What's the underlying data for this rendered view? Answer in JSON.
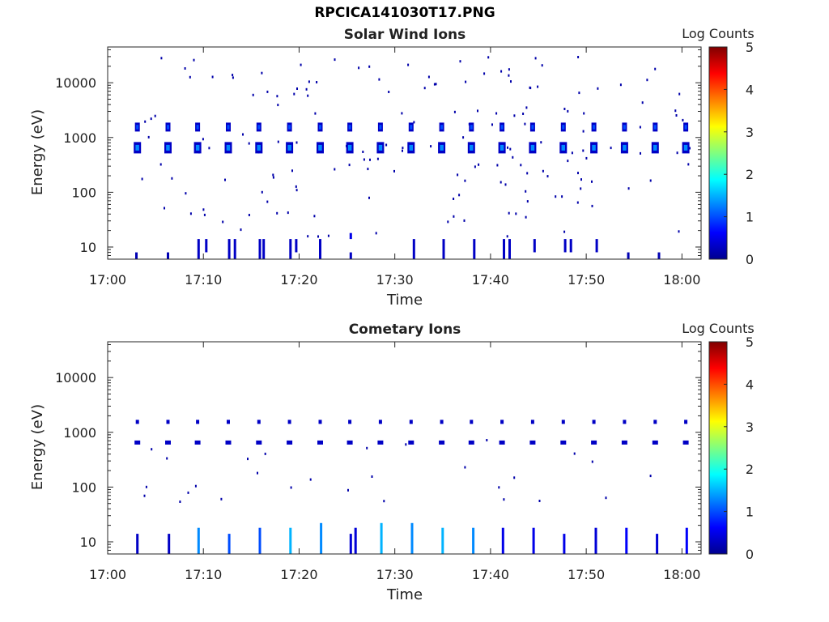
{
  "figure": {
    "title": "RPCICA141030T17.PNG"
  },
  "colormap": {
    "name": "jet",
    "label": "Log Counts",
    "range": [
      0,
      5
    ],
    "ticks": [
      "0",
      "1",
      "2",
      "3",
      "4",
      "5"
    ]
  },
  "chart_data": [
    {
      "type": "heatmap",
      "title": "Solar Wind Ions",
      "xlabel": "Time",
      "ylabel": "Energy (eV)",
      "x_scale": "time",
      "y_scale": "log",
      "xlim": [
        "17:00",
        "18:02"
      ],
      "ylim": [
        6,
        45000
      ],
      "x_ticks": [
        "17:00",
        "17:10",
        "17:20",
        "17:30",
        "17:40",
        "17:50",
        "18:00"
      ],
      "y_ticks": [
        "10",
        "100",
        "1000",
        "10000"
      ],
      "colorbar_label": "Log Counts",
      "scan_times_min": [
        3.1,
        6.3,
        9.4,
        12.6,
        15.8,
        19.0,
        22.2,
        25.3,
        28.5,
        31.7,
        34.9,
        38.0,
        41.2,
        44.4,
        47.6,
        50.8,
        54.0,
        57.2,
        60.4
      ],
      "clusters": [
        {
          "energy_eV": 1550,
          "log_counts": 1.0
        },
        {
          "energy_eV": 650,
          "log_counts": 1.3
        }
      ],
      "low_energy_streaks": [
        {
          "t_min": 3.0,
          "energy_range_eV": [
            6,
            8
          ],
          "log_counts": 0.2
        },
        {
          "t_min": 6.3,
          "energy_range_eV": [
            6,
            8
          ],
          "log_counts": 0.2
        },
        {
          "t_min": 9.5,
          "energy_range_eV": [
            6,
            14
          ],
          "log_counts": 0.3
        },
        {
          "t_min": 10.3,
          "energy_range_eV": [
            8,
            14
          ],
          "log_counts": 0.3
        },
        {
          "t_min": 12.7,
          "energy_range_eV": [
            6,
            14
          ],
          "log_counts": 0.3
        },
        {
          "t_min": 13.3,
          "energy_range_eV": [
            6,
            14
          ],
          "log_counts": 0.3
        },
        {
          "t_min": 15.9,
          "energy_range_eV": [
            6,
            14
          ],
          "log_counts": 0.3
        },
        {
          "t_min": 16.3,
          "energy_range_eV": [
            6,
            14
          ],
          "log_counts": 0.3
        },
        {
          "t_min": 19.1,
          "energy_range_eV": [
            6,
            14
          ],
          "log_counts": 0.3
        },
        {
          "t_min": 19.7,
          "energy_range_eV": [
            8,
            14
          ],
          "log_counts": 0.3
        },
        {
          "t_min": 22.2,
          "energy_range_eV": [
            6,
            14
          ],
          "log_counts": 0.3
        },
        {
          "t_min": 25.4,
          "energy_range_eV": [
            6,
            8
          ],
          "log_counts": 0.3
        },
        {
          "t_min": 25.4,
          "energy_range_eV": [
            14,
            18
          ],
          "log_counts": 0.5
        },
        {
          "t_min": 32.0,
          "energy_range_eV": [
            6,
            14
          ],
          "log_counts": 0.3
        },
        {
          "t_min": 35.1,
          "energy_range_eV": [
            6,
            14
          ],
          "log_counts": 0.3
        },
        {
          "t_min": 38.3,
          "energy_range_eV": [
            6,
            14
          ],
          "log_counts": 0.3
        },
        {
          "t_min": 41.4,
          "energy_range_eV": [
            6,
            14
          ],
          "log_counts": 0.3
        },
        {
          "t_min": 42.0,
          "energy_range_eV": [
            6,
            14
          ],
          "log_counts": 0.3
        },
        {
          "t_min": 44.6,
          "energy_range_eV": [
            8,
            14
          ],
          "log_counts": 0.3
        },
        {
          "t_min": 47.8,
          "energy_range_eV": [
            8,
            14
          ],
          "log_counts": 0.3
        },
        {
          "t_min": 48.4,
          "energy_range_eV": [
            8,
            14
          ],
          "log_counts": 0.3
        },
        {
          "t_min": 51.1,
          "energy_range_eV": [
            8,
            14
          ],
          "log_counts": 0.3
        },
        {
          "t_min": 54.4,
          "energy_range_eV": [
            6,
            8
          ],
          "log_counts": 0.2
        },
        {
          "t_min": 57.6,
          "energy_range_eV": [
            6,
            8
          ],
          "log_counts": 0.2
        }
      ]
    },
    {
      "type": "heatmap",
      "title": "Cometary Ions",
      "xlabel": "Time",
      "ylabel": "Energy (eV)",
      "x_scale": "time",
      "y_scale": "log",
      "xlim": [
        "17:00",
        "18:02"
      ],
      "ylim": [
        6,
        45000
      ],
      "x_ticks": [
        "17:00",
        "17:10",
        "17:20",
        "17:30",
        "17:40",
        "17:50",
        "18:00"
      ],
      "y_ticks": [
        "10",
        "100",
        "1000",
        "10000"
      ],
      "colorbar_label": "Log Counts",
      "scan_times_min": [
        3.1,
        6.3,
        9.4,
        12.6,
        15.8,
        19.0,
        22.2,
        25.3,
        28.5,
        31.7,
        34.9,
        38.0,
        41.2,
        44.4,
        47.6,
        50.8,
        54.0,
        57.2,
        60.4
      ],
      "clusters": [
        {
          "energy_eV": 1550,
          "log_counts": 0.2
        },
        {
          "energy_eV": 650,
          "log_counts": 0.2
        }
      ],
      "low_energy_streaks": [
        {
          "t_min": 3.1,
          "energy_range_eV": [
            6,
            14
          ],
          "log_counts": 0.3
        },
        {
          "t_min": 6.4,
          "energy_range_eV": [
            6,
            14
          ],
          "log_counts": 0.3
        },
        {
          "t_min": 9.5,
          "energy_range_eV": [
            6,
            18
          ],
          "log_counts": 1.3
        },
        {
          "t_min": 12.7,
          "energy_range_eV": [
            6,
            14
          ],
          "log_counts": 1.0
        },
        {
          "t_min": 15.9,
          "energy_range_eV": [
            6,
            18
          ],
          "log_counts": 1.0
        },
        {
          "t_min": 19.1,
          "energy_range_eV": [
            6,
            18
          ],
          "log_counts": 1.5
        },
        {
          "t_min": 22.3,
          "energy_range_eV": [
            6,
            22
          ],
          "log_counts": 1.3
        },
        {
          "t_min": 25.4,
          "energy_range_eV": [
            6,
            14
          ],
          "log_counts": 0.4
        },
        {
          "t_min": 25.9,
          "energy_range_eV": [
            6,
            18
          ],
          "log_counts": 0.4
        },
        {
          "t_min": 28.6,
          "energy_range_eV": [
            6,
            22
          ],
          "log_counts": 1.5
        },
        {
          "t_min": 31.8,
          "energy_range_eV": [
            6,
            22
          ],
          "log_counts": 1.3
        },
        {
          "t_min": 35.0,
          "energy_range_eV": [
            6,
            18
          ],
          "log_counts": 1.5
        },
        {
          "t_min": 38.2,
          "energy_range_eV": [
            6,
            18
          ],
          "log_counts": 1.3
        },
        {
          "t_min": 41.3,
          "energy_range_eV": [
            6,
            18
          ],
          "log_counts": 0.5
        },
        {
          "t_min": 44.5,
          "energy_range_eV": [
            6,
            18
          ],
          "log_counts": 0.5
        },
        {
          "t_min": 47.7,
          "energy_range_eV": [
            6,
            14
          ],
          "log_counts": 0.5
        },
        {
          "t_min": 51.0,
          "energy_range_eV": [
            6,
            18
          ],
          "log_counts": 0.4
        },
        {
          "t_min": 54.2,
          "energy_range_eV": [
            6,
            18
          ],
          "log_counts": 0.6
        },
        {
          "t_min": 57.4,
          "energy_range_eV": [
            6,
            14
          ],
          "log_counts": 0.4
        },
        {
          "t_min": 60.5,
          "energy_range_eV": [
            6,
            18
          ],
          "log_counts": 0.6
        }
      ]
    }
  ]
}
